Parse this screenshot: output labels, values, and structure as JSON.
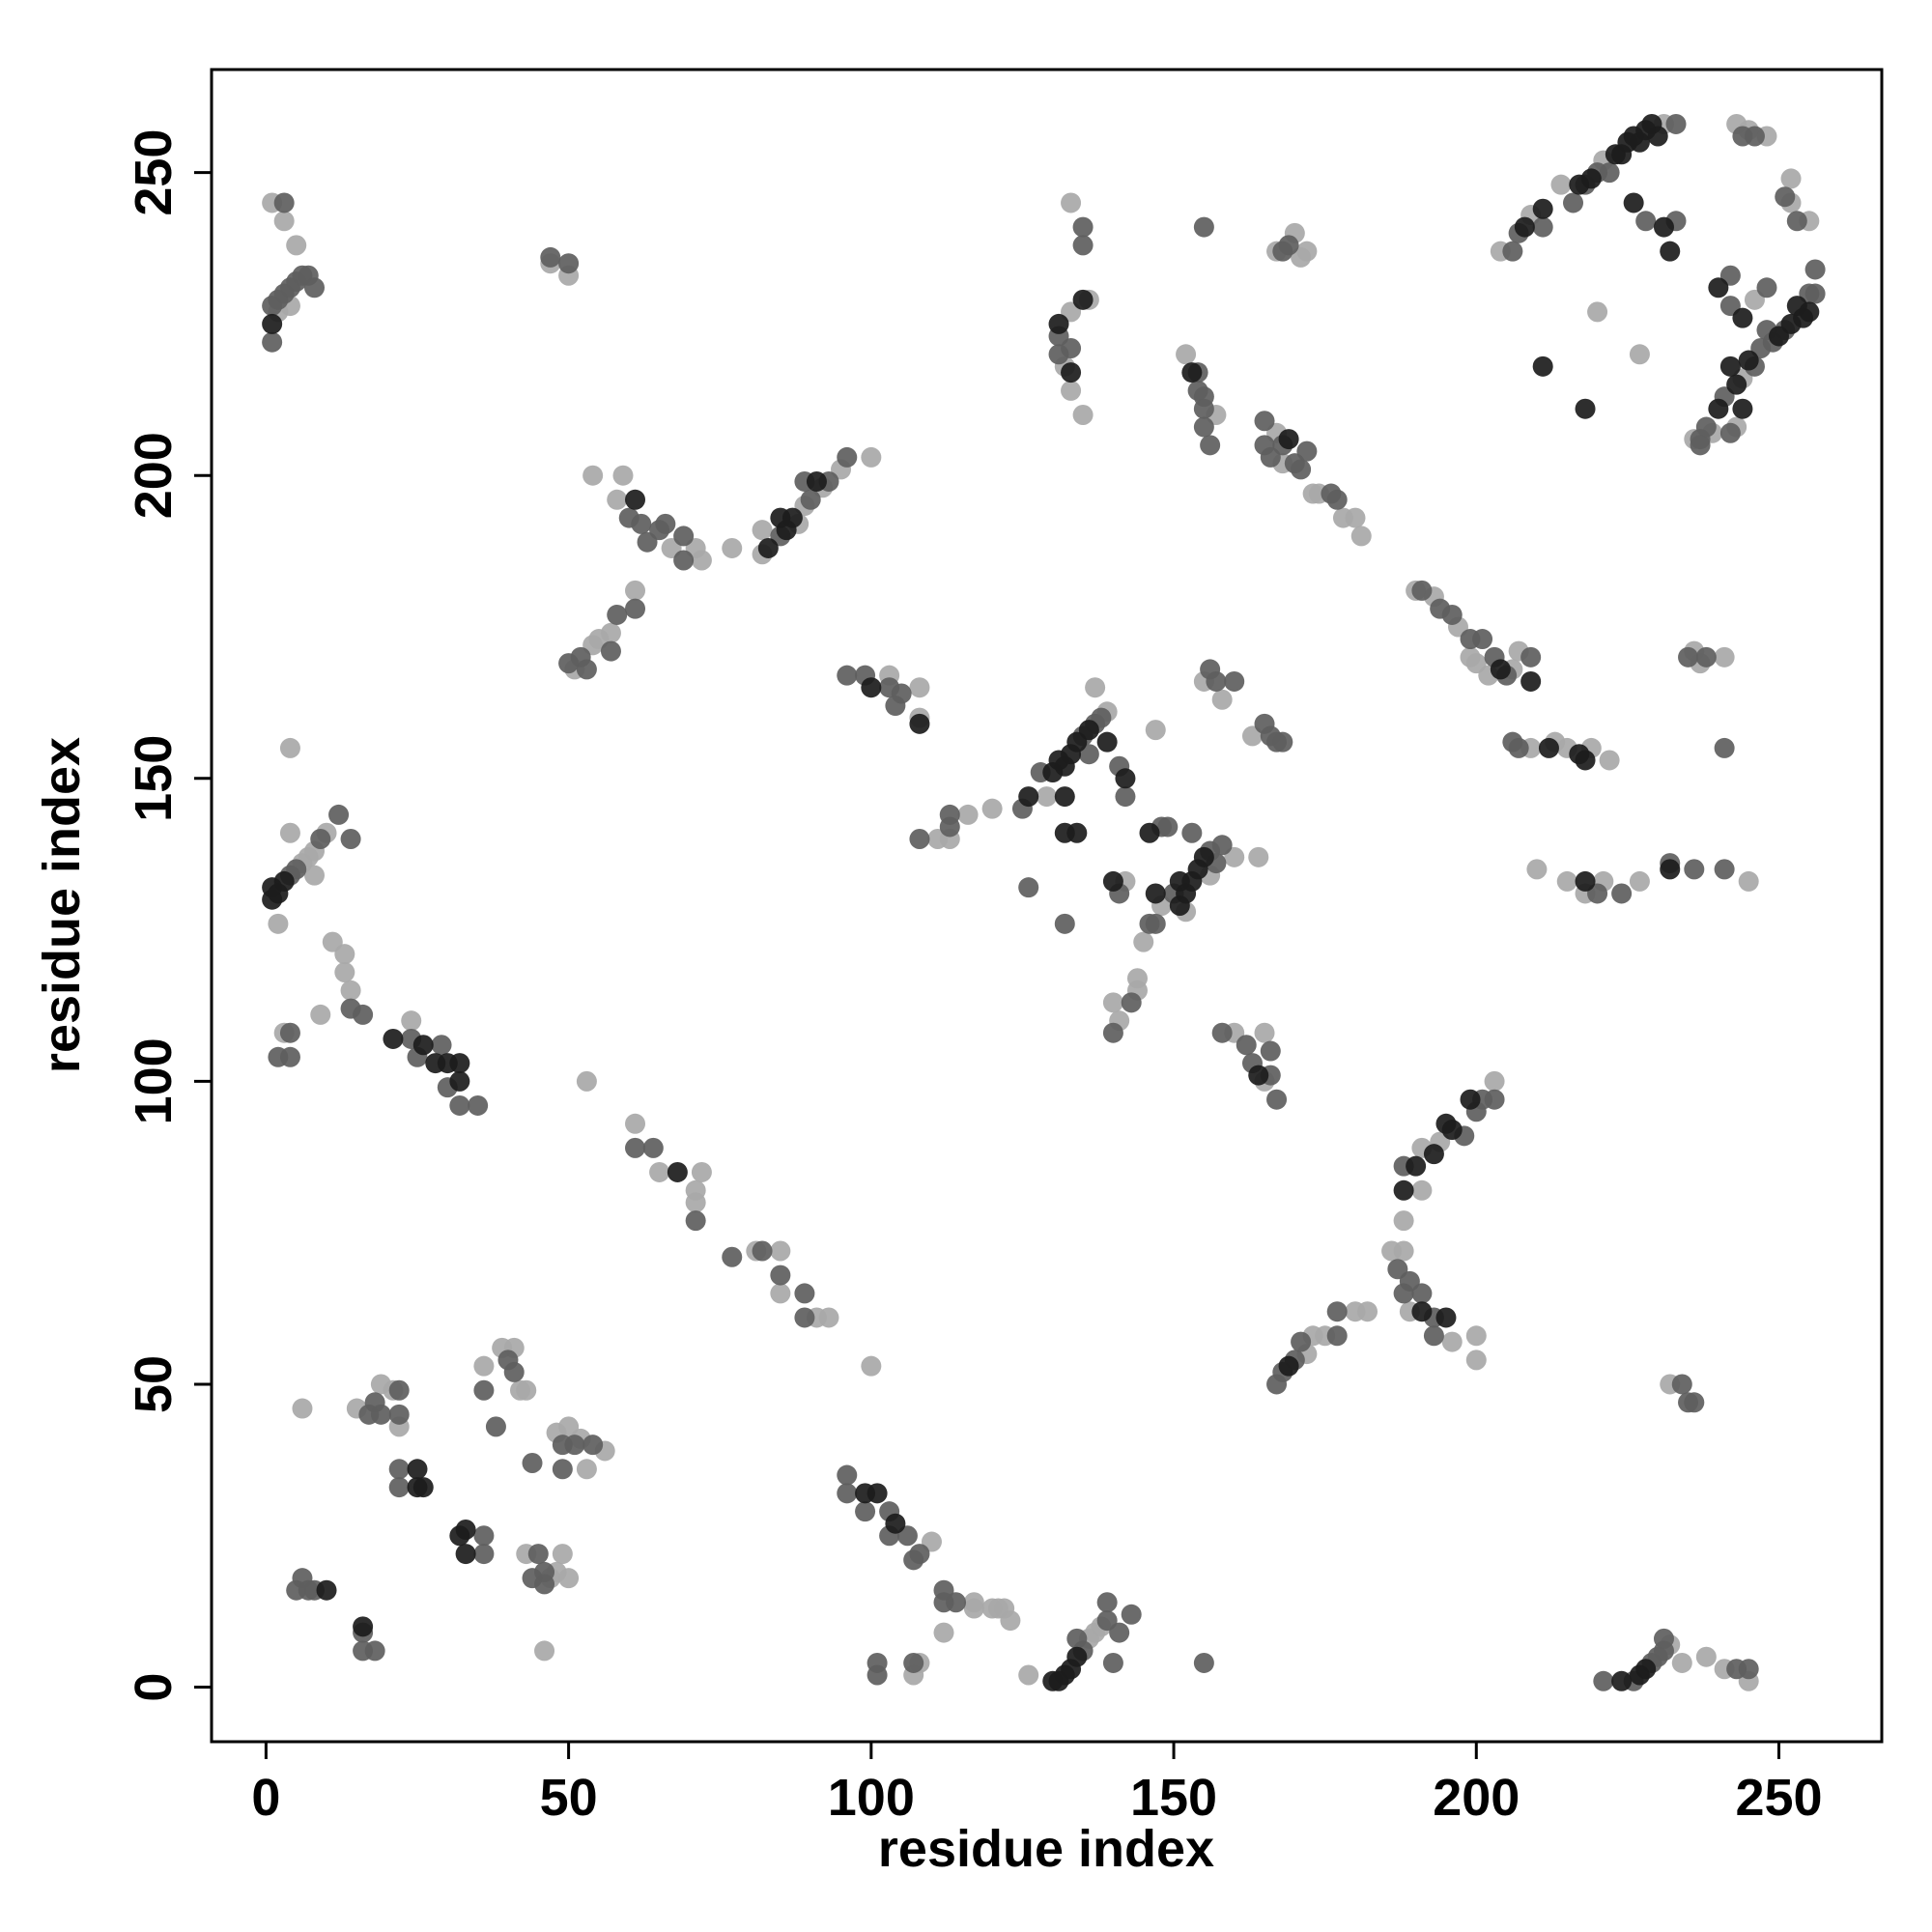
{
  "chart_data": {
    "type": "scatter",
    "x_label": "residue index",
    "y_label": "residue index",
    "xlim": [
      -9,
      267
    ],
    "ylim": [
      -9,
      267
    ],
    "xticks": [
      0,
      50,
      100,
      150,
      200,
      250
    ],
    "yticks": [
      0,
      50,
      100,
      150,
      200,
      250
    ],
    "grid": false,
    "series": [
      {
        "color": "#a8a8a8",
        "x": [
          1,
          3,
          5,
          2,
          4,
          47,
          50,
          6,
          7,
          8,
          10,
          4,
          4,
          2,
          8,
          11,
          13,
          13,
          14,
          9,
          3,
          24,
          53,
          61,
          65,
          71,
          72,
          71,
          81,
          85,
          91,
          93,
          85,
          100,
          6,
          15,
          19,
          21,
          22,
          36,
          39,
          42,
          43,
          41,
          43,
          47,
          49,
          50,
          46,
          48,
          50,
          52,
          53,
          56,
          48,
          110,
          112,
          117,
          117,
          120,
          121,
          122,
          123,
          126,
          107,
          108,
          136,
          137,
          138,
          232,
          234,
          238,
          241,
          245,
          232,
          172,
          173,
          175,
          180,
          182,
          186,
          188,
          189,
          196,
          200,
          200,
          191,
          194,
          203,
          188,
          191,
          160,
          165,
          165,
          120,
          139,
          137,
          129,
          140,
          141,
          144,
          144,
          145,
          148,
          152,
          160,
          156,
          147,
          164,
          142,
          155,
          158,
          163,
          116,
          111,
          113,
          103,
          108,
          108,
          51,
          54,
          55,
          57,
          61,
          54,
          58,
          59,
          67,
          71,
          72,
          77,
          82,
          88,
          89,
          95,
          100,
          82,
          92,
          132,
          133,
          133,
          133,
          135,
          136,
          152,
          157,
          167,
          168,
          173,
          174,
          178,
          180,
          181,
          190,
          193,
          197,
          199,
          200,
          202,
          206,
          207,
          167,
          170,
          171,
          172,
          209,
          213,
          215,
          219,
          222,
          210,
          215,
          218,
          221,
          227,
          245,
          236,
          237,
          241,
          204,
          209,
          214,
          221,
          231,
          243,
          245,
          248,
          252,
          252,
          255,
          244,
          236,
          239,
          243,
          246,
          220,
          227
        ],
        "values": [
          245,
          242,
          238,
          227,
          228,
          235,
          233,
          136,
          137,
          138,
          141,
          141,
          155,
          126,
          134,
          123,
          121,
          118,
          115,
          111,
          108,
          110,
          100,
          93,
          85,
          82,
          85,
          80,
          72,
          65,
          61,
          61,
          72,
          53,
          46,
          46,
          50,
          49,
          43,
          53,
          56,
          49,
          49,
          56,
          22,
          18,
          22,
          18,
          6,
          42,
          43,
          41,
          36,
          39,
          19,
          24,
          9,
          13,
          14,
          13,
          13,
          13,
          11,
          2,
          2,
          4,
          8,
          9,
          10,
          7,
          4,
          5,
          3,
          1,
          50,
          55,
          58,
          58,
          62,
          62,
          72,
          72,
          62,
          57,
          58,
          54,
          89,
          90,
          100,
          77,
          82,
          108,
          108,
          100,
          145,
          161,
          165,
          147,
          113,
          110,
          117,
          115,
          123,
          129,
          128,
          137,
          134,
          158,
          137,
          133,
          166,
          163,
          157,
          144,
          140,
          140,
          167,
          160,
          165,
          168,
          172,
          173,
          174,
          181,
          200,
          196,
          200,
          188,
          188,
          186,
          188,
          187,
          192,
          195,
          201,
          203,
          191,
          198,
          218,
          214,
          227,
          245,
          210,
          229,
          220,
          210,
          207,
          202,
          197,
          197,
          193,
          193,
          190,
          181,
          180,
          175,
          170,
          169,
          167,
          168,
          171,
          237,
          240,
          236,
          237,
          155,
          156,
          155,
          155,
          153,
          135,
          133,
          131,
          133,
          133,
          133,
          171,
          169,
          170,
          237,
          243,
          248,
          252,
          258,
          258,
          257,
          256,
          245,
          249,
          242,
          216,
          206,
          207,
          208,
          229,
          227,
          220
        ]
      },
      {
        "color": "#5e5e5e",
        "x": [
          1,
          1,
          2,
          3,
          4,
          5,
          6,
          7,
          8,
          3,
          47,
          50,
          4,
          5,
          9,
          12,
          14,
          14,
          16,
          4,
          2,
          4,
          24,
          25,
          29,
          30,
          32,
          35,
          61,
          64,
          71,
          77,
          82,
          85,
          89,
          89,
          5,
          6,
          7,
          8,
          16,
          16,
          18,
          17,
          18,
          19,
          22,
          22,
          22,
          22,
          36,
          36,
          36,
          38,
          40,
          41,
          44,
          44,
          45,
          46,
          46,
          49,
          51,
          54,
          49,
          96,
          96,
          99,
          103,
          103,
          106,
          107,
          108,
          112,
          112,
          114,
          101,
          101,
          107,
          134,
          135,
          139,
          139,
          140,
          141,
          143,
          155,
          221,
          226,
          229,
          230,
          231,
          231,
          243,
          245,
          234,
          235,
          236,
          167,
          168,
          170,
          171,
          177,
          177,
          187,
          188,
          189,
          191,
          193,
          193,
          188,
          198,
          200,
          201,
          203,
          158,
          162,
          163,
          166,
          166,
          167,
          125,
          128,
          135,
          137,
          138,
          136,
          126,
          132,
          141,
          142,
          141,
          140,
          143,
          146,
          147,
          148,
          149,
          150,
          156,
          157,
          158,
          153,
          156,
          157,
          160,
          165,
          166,
          167,
          168,
          113,
          113,
          108,
          96,
          99,
          103,
          104,
          105,
          50,
          52,
          53,
          57,
          58,
          61,
          60,
          62,
          63,
          65,
          66,
          69,
          69,
          85,
          90,
          93,
          96,
          89,
          131,
          131,
          133,
          135,
          135,
          155,
          154,
          155,
          154,
          155,
          155,
          156,
          165,
          165,
          166,
          168,
          170,
          171,
          172,
          176,
          177,
          191,
          194,
          196,
          199,
          201,
          203,
          205,
          209,
          168,
          169,
          206,
          207,
          220,
          224,
          232,
          236,
          241,
          235,
          238,
          241,
          206,
          207,
          211,
          216,
          218,
          220,
          222,
          233,
          228,
          233,
          244,
          246,
          251,
          253,
          256,
          256,
          251,
          249,
          248,
          247,
          246,
          241,
          238,
          237,
          237,
          242,
          242,
          242,
          248,
          255
        ],
        "values": [
          222,
          228,
          229,
          230,
          231,
          232,
          233,
          233,
          231,
          245,
          236,
          235,
          134,
          135,
          140,
          144,
          140,
          112,
          111,
          108,
          104,
          104,
          107,
          104,
          106,
          99,
          96,
          96,
          89,
          89,
          77,
          71,
          72,
          68,
          61,
          65,
          16,
          18,
          16,
          16,
          6,
          9,
          6,
          45,
          47,
          45,
          45,
          49,
          36,
          33,
          25,
          22,
          49,
          43,
          54,
          52,
          37,
          18,
          22,
          19,
          17,
          40,
          40,
          40,
          36,
          35,
          32,
          29,
          29,
          25,
          25,
          21,
          22,
          16,
          14,
          14,
          4,
          2,
          4,
          8,
          6,
          14,
          11,
          4,
          9,
          12,
          4,
          1,
          1,
          4,
          5,
          6,
          8,
          3,
          3,
          50,
          47,
          47,
          50,
          52,
          54,
          57,
          58,
          62,
          69,
          65,
          67,
          65,
          61,
          58,
          86,
          91,
          95,
          97,
          97,
          108,
          106,
          103,
          105,
          101,
          97,
          145,
          151,
          157,
          159,
          160,
          154,
          132,
          126,
          152,
          147,
          131,
          108,
          113,
          126,
          126,
          142,
          142,
          131,
          138,
          136,
          139,
          141,
          168,
          166,
          166,
          159,
          157,
          156,
          156,
          142,
          144,
          140,
          167,
          167,
          165,
          162,
          164,
          169,
          170,
          168,
          171,
          177,
          178,
          193,
          192,
          189,
          191,
          192,
          190,
          186,
          190,
          196,
          199,
          203,
          199,
          223,
          220,
          221,
          238,
          241,
          241,
          214,
          213,
          217,
          211,
          208,
          205,
          209,
          205,
          203,
          205,
          202,
          201,
          204,
          197,
          196,
          181,
          178,
          177,
          173,
          173,
          170,
          167,
          170,
          237,
          238,
          156,
          155,
          131,
          131,
          136,
          135,
          135,
          170,
          170,
          155,
          237,
          240,
          241,
          245,
          248,
          250,
          250,
          258,
          242,
          242,
          256,
          256,
          246,
          242,
          234,
          230,
          224,
          222,
          224,
          221,
          218,
          213,
          208,
          206,
          205,
          207,
          233,
          228,
          231,
          230
        ]
      },
      {
        "color": "#1c1c1c",
        "x": [
          1,
          1,
          1,
          2,
          3,
          21,
          26,
          28,
          30,
          32,
          32,
          68,
          10,
          16,
          25,
          25,
          26,
          32,
          33,
          33,
          99,
          101,
          104,
          130,
          131,
          132,
          133,
          134,
          224,
          227,
          228,
          169,
          191,
          195,
          188,
          190,
          193,
          195,
          196,
          199,
          164,
          126,
          130,
          131,
          132,
          133,
          134,
          136,
          139,
          132,
          132,
          134,
          142,
          140,
          147,
          146,
          151,
          152,
          153,
          154,
          155,
          151,
          100,
          108,
          61,
          83,
          86,
          87,
          91,
          85,
          131,
          133,
          135,
          153,
          169,
          204,
          209,
          212,
          217,
          218,
          218,
          232,
          208,
          211,
          217,
          219,
          223,
          224,
          225,
          226,
          227,
          228,
          229,
          230,
          226,
          231,
          255,
          254,
          253,
          252,
          250,
          245,
          243,
          242,
          240,
          244,
          240,
          244,
          211,
          218,
          232
        ],
        "values": [
          225,
          130,
          132,
          131,
          133,
          107,
          106,
          103,
          103,
          103,
          100,
          85,
          16,
          10,
          36,
          33,
          33,
          25,
          26,
          22,
          32,
          32,
          27,
          1,
          1,
          2,
          3,
          5,
          1,
          2,
          3,
          53,
          62,
          61,
          82,
          86,
          88,
          93,
          92,
          97,
          101,
          147,
          151,
          153,
          152,
          154,
          156,
          158,
          156,
          147,
          141,
          141,
          150,
          133,
          131,
          141,
          129,
          131,
          133,
          135,
          137,
          133,
          165,
          159,
          196,
          188,
          191,
          193,
          199,
          193,
          225,
          217,
          229,
          217,
          206,
          168,
          166,
          155,
          154,
          153,
          133,
          135,
          241,
          244,
          248,
          249,
          253,
          253,
          255,
          256,
          255,
          257,
          258,
          256,
          245,
          241,
          227,
          226,
          228,
          225,
          223,
          219,
          215,
          218,
          211,
          211,
          231,
          226,
          218,
          211,
          237
        ]
      }
    ]
  }
}
